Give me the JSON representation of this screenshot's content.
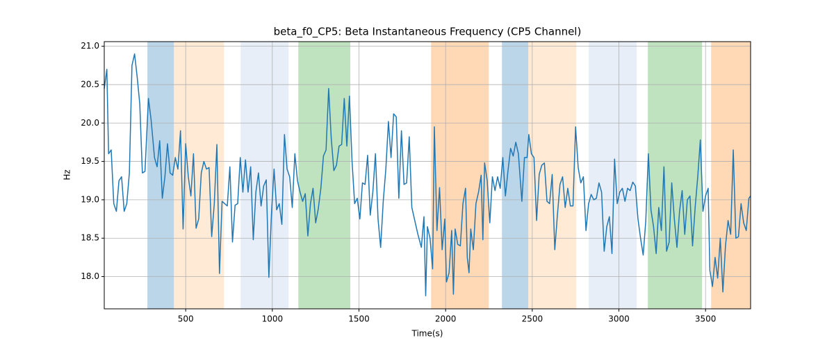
{
  "chart_data": {
    "type": "line",
    "title": "beta_f0_CP5: Beta Instantaneous Frequency (CP5 Channel)",
    "x_label": "Time(s)",
    "y_label": "Hz",
    "xlim": [
      30,
      3760
    ],
    "ylim": [
      17.58,
      21.06
    ],
    "xticks": [
      500,
      1000,
      1500,
      2000,
      2500,
      3000,
      3500
    ],
    "yticks": [
      {
        "value": 18,
        "label": "18.0"
      },
      18.5,
      {
        "value": 19,
        "label": "19.0"
      },
      19.5,
      {
        "value": 20,
        "label": "20.0"
      },
      20.5,
      {
        "value": 21,
        "label": "21.0"
      }
    ],
    "grid": true,
    "spans": [
      {
        "start": 279,
        "end": 432,
        "color": "#1f77b4",
        "alpha": 0.3
      },
      {
        "start": 432,
        "end": 721,
        "color": "#ffbb78",
        "alpha": 0.3
      },
      {
        "start": 817,
        "end": 1094,
        "color": "#aec7e8",
        "alpha": 0.3
      },
      {
        "start": 1150,
        "end": 1450,
        "color": "#2ca02c",
        "alpha": 0.3
      },
      {
        "start": 1916,
        "end": 2249,
        "color": "#ff7f0e",
        "alpha": 0.3
      },
      {
        "start": 2325,
        "end": 2477,
        "color": "#1f77b4",
        "alpha": 0.3
      },
      {
        "start": 2477,
        "end": 2754,
        "color": "#ffbb78",
        "alpha": 0.3
      },
      {
        "start": 2826,
        "end": 3103,
        "color": "#aec7e8",
        "alpha": 0.3
      },
      {
        "start": 3167,
        "end": 3480,
        "color": "#2ca02c",
        "alpha": 0.3
      },
      {
        "start": 3532,
        "end": 3760,
        "color": "#ff7f0e",
        "alpha": 0.3
      }
    ],
    "series": [
      {
        "color": "#1f77b4",
        "x": [
          30,
          45,
          55,
          70,
          85,
          100,
          115,
          130,
          145,
          160,
          175,
          190,
          205,
          220,
          235,
          250,
          265,
          285,
          300,
          320,
          335,
          350,
          365,
          380,
          395,
          410,
          425,
          440,
          455,
          470,
          485,
          500,
          515,
          530,
          545,
          560,
          575,
          590,
          605,
          620,
          635,
          650,
          665,
          680,
          695,
          710,
          725,
          740,
          755,
          770,
          785,
          800,
          815,
          830,
          845,
          860,
          875,
          890,
          905,
          920,
          935,
          950,
          965,
          980,
          995,
          1010,
          1025,
          1040,
          1055,
          1070,
          1085,
          1100,
          1115,
          1130,
          1145,
          1160,
          1175,
          1190,
          1205,
          1220,
          1235,
          1250,
          1265,
          1280,
          1295,
          1310,
          1325,
          1340,
          1355,
          1370,
          1385,
          1400,
          1415,
          1430,
          1445,
          1460,
          1475,
          1490,
          1505,
          1520,
          1535,
          1550,
          1565,
          1580,
          1595,
          1610,
          1625,
          1640,
          1655,
          1670,
          1685,
          1700,
          1715,
          1730,
          1745,
          1760,
          1775,
          1790,
          1805,
          1820,
          1840,
          1860,
          1875,
          1885,
          1895,
          1910,
          1925,
          1935,
          1950,
          1965,
          1980,
          1995,
          2005,
          2020,
          2035,
          2045,
          2055,
          2070,
          2085,
          2100,
          2115,
          2125,
          2135,
          2145,
          2160,
          2175,
          2190,
          2205,
          2215,
          2225,
          2240,
          2255,
          2270,
          2285,
          2300,
          2315,
          2330,
          2345,
          2360,
          2375,
          2390,
          2405,
          2420,
          2440,
          2455,
          2470,
          2480,
          2495,
          2510,
          2525,
          2540,
          2555,
          2570,
          2585,
          2600,
          2615,
          2630,
          2645,
          2660,
          2675,
          2690,
          2705,
          2720,
          2735,
          2750,
          2765,
          2780,
          2795,
          2810,
          2825,
          2840,
          2855,
          2870,
          2885,
          2900,
          2915,
          2930,
          2945,
          2960,
          2975,
          2990,
          3005,
          3020,
          3035,
          3050,
          3065,
          3080,
          3095,
          3110,
          3125,
          3140,
          3155,
          3170,
          3185,
          3200,
          3215,
          3230,
          3245,
          3260,
          3275,
          3290,
          3305,
          3320,
          3335,
          3350,
          3365,
          3380,
          3395,
          3410,
          3425,
          3440,
          3455,
          3470,
          3485,
          3500,
          3515,
          3525,
          3540,
          3555,
          3570,
          3585,
          3600,
          3615,
          3630,
          3645,
          3660,
          3675,
          3690,
          3705,
          3720,
          3735,
          3750,
          3760
        ],
        "values": [
          20.45,
          20.7,
          19.6,
          19.65,
          18.95,
          18.85,
          19.25,
          19.3,
          18.85,
          18.95,
          19.35,
          20.75,
          20.9,
          20.6,
          20.25,
          19.35,
          19.37,
          20.32,
          20.05,
          19.55,
          19.43,
          19.77,
          19.02,
          19.3,
          19.73,
          19.35,
          19.32,
          19.55,
          19.4,
          19.9,
          18.62,
          19.73,
          19.3,
          19.05,
          19.6,
          18.63,
          18.75,
          19.35,
          19.5,
          19.4,
          19.42,
          18.52,
          18.95,
          19.72,
          18.04,
          18.98,
          18.95,
          18.92,
          19.43,
          18.45,
          18.93,
          18.95,
          19.55,
          19.1,
          19.52,
          19.1,
          19.43,
          18.48,
          19.1,
          19.35,
          18.92,
          19.18,
          19.26,
          17.99,
          18.82,
          19.4,
          18.87,
          18.95,
          18.68,
          19.85,
          19.4,
          19.3,
          18.9,
          19.6,
          19.25,
          19.1,
          18.98,
          19.08,
          18.53,
          18.95,
          19.15,
          18.7,
          18.88,
          19.15,
          19.57,
          19.65,
          20.45,
          19.8,
          19.38,
          19.45,
          19.7,
          19.72,
          20.32,
          19.7,
          20.35,
          19.5,
          18.95,
          19.02,
          18.75,
          19.22,
          19.2,
          19.58,
          18.8,
          19.1,
          19.6,
          18.75,
          18.38,
          18.98,
          19.4,
          20.02,
          19.55,
          20.12,
          20.08,
          19.02,
          19.9,
          19.2,
          19.22,
          19.82,
          18.9,
          18.75,
          18.55,
          18.38,
          18.78,
          17.75,
          18.65,
          18.5,
          18.1,
          19.95,
          18.6,
          19.16,
          18.35,
          18.75,
          17.93,
          18.05,
          18.6,
          17.77,
          18.62,
          18.42,
          18.4,
          18.95,
          19.15,
          18.25,
          18.05,
          18.62,
          18.35,
          18.95,
          19.1,
          19.32,
          18.48,
          19.48,
          19.25,
          18.7,
          19.3,
          19.12,
          19.3,
          19.15,
          19.55,
          19.05,
          19.38,
          19.67,
          19.57,
          19.75,
          19.6,
          18.98,
          19.55,
          19.55,
          19.85,
          19.6,
          19.55,
          18.73,
          19.33,
          19.45,
          19.48,
          18.98,
          18.95,
          19.33,
          18.35,
          18.8,
          19.2,
          19.3,
          18.9,
          19.15,
          18.92,
          18.92,
          19.95,
          19.42,
          19.22,
          19.3,
          18.6,
          18.95,
          19.07,
          19.0,
          19.02,
          19.22,
          19.1,
          18.33,
          18.65,
          18.78,
          18.3,
          19.53,
          18.95,
          19.1,
          19.15,
          18.98,
          19.15,
          19.12,
          19.23,
          19.18,
          18.75,
          18.5,
          18.28,
          18.72,
          19.6,
          18.87,
          18.65,
          18.3,
          18.9,
          18.6,
          19.43,
          18.33,
          18.45,
          19.22,
          18.75,
          18.38,
          18.85,
          19.12,
          18.55,
          19.0,
          19.05,
          18.4,
          18.9,
          19.3,
          19.78,
          18.85,
          19.05,
          19.15,
          18.08,
          17.87,
          18.25,
          17.98,
          18.5,
          17.8,
          18.4,
          18.73,
          18.55,
          19.65,
          18.5,
          18.52,
          18.95,
          18.7,
          18.6,
          19.02,
          19.05
        ]
      }
    ]
  }
}
